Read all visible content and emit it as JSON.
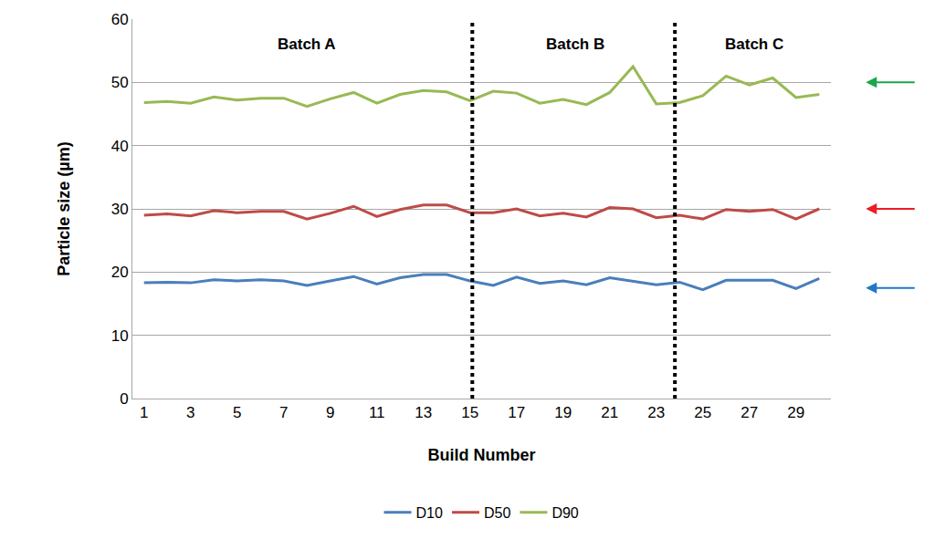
{
  "chart_data": {
    "type": "line",
    "x_label": "Build Number",
    "y_label": "Particle size (µm)",
    "x": [
      1,
      2,
      3,
      4,
      5,
      6,
      7,
      8,
      9,
      10,
      11,
      12,
      13,
      14,
      15,
      16,
      17,
      18,
      19,
      20,
      21,
      22,
      23,
      24,
      25,
      26,
      27,
      28,
      29,
      30
    ],
    "series": [
      {
        "name": "D10",
        "color": "#4a7ebb",
        "values": [
          18.3,
          18.4,
          18.3,
          18.8,
          18.6,
          18.8,
          18.6,
          17.9,
          18.6,
          19.3,
          18.1,
          19.1,
          19.6,
          19.6,
          18.6,
          17.9,
          19.2,
          18.2,
          18.6,
          18.0,
          19.1,
          18.6,
          18.0,
          18.4,
          17.2,
          18.7,
          18.7,
          18.7,
          17.4,
          19.0
        ]
      },
      {
        "name": "D50",
        "color": "#be4b48",
        "values": [
          29.0,
          29.2,
          28.9,
          29.7,
          29.4,
          29.6,
          29.6,
          28.4,
          29.3,
          30.4,
          28.8,
          29.9,
          30.6,
          30.6,
          29.4,
          29.4,
          30.0,
          28.9,
          29.3,
          28.7,
          30.2,
          30.0,
          28.6,
          29.0,
          28.4,
          29.9,
          29.6,
          29.9,
          28.4,
          30.0
        ]
      },
      {
        "name": "D90",
        "color": "#98b954",
        "values": [
          46.8,
          47.0,
          46.7,
          47.7,
          47.2,
          47.5,
          47.5,
          46.2,
          47.4,
          48.4,
          46.7,
          48.1,
          48.7,
          48.5,
          47.1,
          48.6,
          48.3,
          46.7,
          47.3,
          46.5,
          48.4,
          52.5,
          46.6,
          46.8,
          47.9,
          51.0,
          49.6,
          50.7,
          47.6,
          48.1
        ]
      }
    ],
    "xlim": [
      0.5,
      30.5
    ],
    "xticks": [
      1,
      3,
      5,
      7,
      9,
      11,
      13,
      15,
      17,
      19,
      21,
      23,
      25,
      27,
      29
    ],
    "ylim": [
      0,
      60
    ],
    "yticks": [
      0,
      10,
      20,
      30,
      40,
      50,
      60
    ],
    "grid": true,
    "legend": "bottom",
    "annotations": [
      {
        "text": "Batch A",
        "x": 8,
        "y": 56
      },
      {
        "text": "Batch B",
        "x": 19.5,
        "y": 56
      },
      {
        "text": "Batch C",
        "x": 27.2,
        "y": 56
      }
    ],
    "batch_boundaries": [
      15.1,
      23.8
    ],
    "arrows": [
      {
        "y": 50,
        "color": "#1aa64a"
      },
      {
        "y": 30,
        "color": "#ee1c24"
      },
      {
        "y": 17.5,
        "color": "#1f78c8"
      }
    ]
  }
}
